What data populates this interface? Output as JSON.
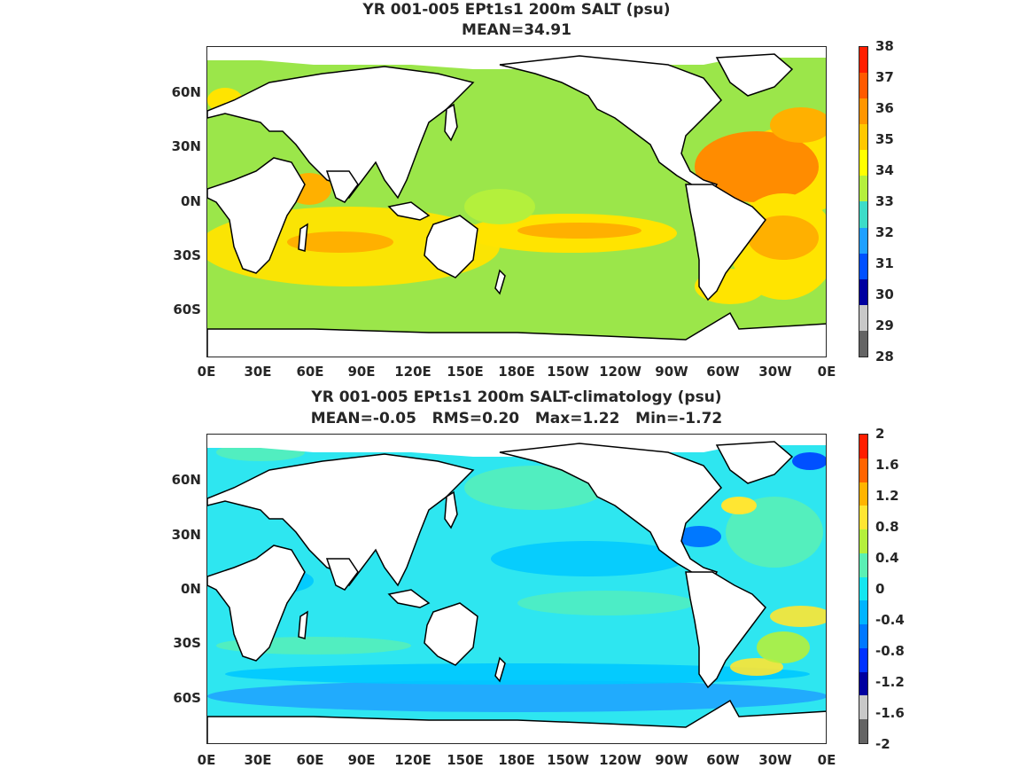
{
  "panels": [
    {
      "title_line1": "YR 001-005 EPt1s1 200m SALT (psu)",
      "title_line2": "MEAN=34.91",
      "field": "salinity",
      "ocean_color": "#9be64a",
      "colorbar_labels": [
        "38",
        "37",
        "36",
        "35",
        "34",
        "33",
        "32",
        "31",
        "30",
        "29",
        "28"
      ],
      "colorbar_colors": [
        "#ff1e00",
        "#ff5a00",
        "#ff9600",
        "#ffc800",
        "#ffff00",
        "#b4f03c",
        "#3cdcc8",
        "#1ea0ff",
        "#0050ff",
        "#0000a0",
        "#c8c8c8",
        "#646464"
      ]
    },
    {
      "title_line1": "YR 001-005 EPt1s1 200m SALT-climatology (psu)",
      "title_line2": "MEAN=-0.05   RMS=0.20   Max=1.22   Min=-1.72",
      "field": "anomaly",
      "ocean_color": "#2ee6f0",
      "colorbar_labels": [
        "2",
        "1.6",
        "1.2",
        "0.8",
        "0.4",
        "0",
        "-0.4",
        "-0.8",
        "-1.2",
        "-1.6",
        "-2"
      ],
      "colorbar_colors": [
        "#ff1e00",
        "#ff6400",
        "#ffb400",
        "#ffe632",
        "#b4f03c",
        "#5af0b4",
        "#14e6f0",
        "#00b4ff",
        "#0078ff",
        "#0032ff",
        "#0000a0",
        "#c8c8c8",
        "#646464"
      ]
    }
  ],
  "y_axis_labels": [
    "60N",
    "30N",
    "0N",
    "30S",
    "60S"
  ],
  "x_axis_labels": [
    "0E",
    "30E",
    "60E",
    "90E",
    "120E",
    "150E",
    "180E",
    "150W",
    "120W",
    "90W",
    "60W",
    "30W",
    "0E"
  ],
  "colors": {
    "land": "#ffffff",
    "coast": "#000000",
    "salinity_high": "#ff8c00",
    "salinity_mid": "#ffe400",
    "anomaly_neg": "#1e90ff",
    "anomaly_pos": "#c8f04a"
  }
}
